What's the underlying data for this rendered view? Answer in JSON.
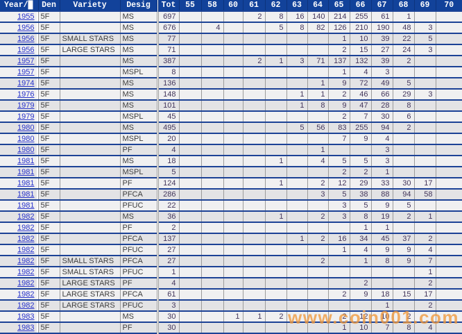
{
  "table": {
    "columns": [
      "Year/█",
      "Den",
      "Variety",
      "Desig",
      "Tot",
      "55",
      "58",
      "60",
      "61",
      "62",
      "63",
      "64",
      "65",
      "66",
      "67",
      "68",
      "69",
      "70"
    ],
    "rows": [
      [
        "1955",
        "5F",
        "",
        "MS",
        "697",
        "",
        "",
        "",
        "2",
        "8",
        "16",
        "140",
        "214",
        "255",
        "61",
        "1",
        "",
        ""
      ],
      [
        "1956",
        "5F",
        "",
        "MS",
        "676",
        "",
        "4",
        "",
        "",
        "5",
        "8",
        "82",
        "126",
        "210",
        "190",
        "48",
        "3",
        ""
      ],
      [
        "1956",
        "5F",
        "SMALL STARS",
        "MS",
        "77",
        "",
        "",
        "",
        "",
        "",
        "",
        "",
        "1",
        "10",
        "39",
        "22",
        "5",
        ""
      ],
      [
        "1956",
        "5F",
        "LARGE STARS",
        "MS",
        "71",
        "",
        "",
        "",
        "",
        "",
        "",
        "",
        "2",
        "15",
        "27",
        "24",
        "3",
        ""
      ],
      [
        "1957",
        "5F",
        "",
        "MS",
        "387",
        "",
        "",
        "",
        "2",
        "1",
        "3",
        "71",
        "137",
        "132",
        "39",
        "2",
        "",
        ""
      ],
      [
        "1957",
        "5F",
        "",
        "MSPL",
        "8",
        "",
        "",
        "",
        "",
        "",
        "",
        "",
        "1",
        "4",
        "3",
        "",
        "",
        ""
      ],
      [
        "1974",
        "5F",
        "",
        "MS",
        "136",
        "",
        "",
        "",
        "",
        "",
        "",
        "1",
        "9",
        "72",
        "49",
        "5",
        "",
        ""
      ],
      [
        "1976",
        "5F",
        "",
        "MS",
        "148",
        "",
        "",
        "",
        "",
        "",
        "1",
        "1",
        "2",
        "46",
        "66",
        "29",
        "3",
        ""
      ],
      [
        "1979",
        "5F",
        "",
        "MS",
        "101",
        "",
        "",
        "",
        "",
        "",
        "1",
        "8",
        "9",
        "47",
        "28",
        "8",
        "",
        ""
      ],
      [
        "1979",
        "5F",
        "",
        "MSPL",
        "45",
        "",
        "",
        "",
        "",
        "",
        "",
        "",
        "2",
        "7",
        "30",
        "6",
        "",
        ""
      ],
      [
        "1980",
        "5F",
        "",
        "MS",
        "495",
        "",
        "",
        "",
        "",
        "",
        "5",
        "56",
        "83",
        "255",
        "94",
        "2",
        "",
        ""
      ],
      [
        "1980",
        "5F",
        "",
        "MSPL",
        "20",
        "",
        "",
        "",
        "",
        "",
        "",
        "",
        "7",
        "9",
        "4",
        "",
        "",
        ""
      ],
      [
        "1980",
        "5F",
        "",
        "PF",
        "4",
        "",
        "",
        "",
        "",
        "",
        "",
        "1",
        "",
        "",
        "3",
        "",
        "",
        ""
      ],
      [
        "1981",
        "5F",
        "",
        "MS",
        "18",
        "",
        "",
        "",
        "",
        "1",
        "",
        "4",
        "5",
        "5",
        "3",
        "",
        "",
        ""
      ],
      [
        "1981",
        "5F",
        "",
        "MSPL",
        "5",
        "",
        "",
        "",
        "",
        "",
        "",
        "",
        "2",
        "2",
        "1",
        "",
        "",
        ""
      ],
      [
        "1981",
        "5F",
        "",
        "PF",
        "124",
        "",
        "",
        "",
        "",
        "1",
        "",
        "2",
        "12",
        "29",
        "33",
        "30",
        "17",
        ""
      ],
      [
        "1981",
        "5F",
        "",
        "PFCA",
        "286",
        "",
        "",
        "",
        "",
        "",
        "",
        "3",
        "5",
        "38",
        "88",
        "94",
        "58",
        ""
      ],
      [
        "1981",
        "5F",
        "",
        "PFUC",
        "22",
        "",
        "",
        "",
        "",
        "",
        "",
        "",
        "3",
        "5",
        "9",
        "5",
        "",
        ""
      ],
      [
        "1982",
        "5F",
        "",
        "MS",
        "36",
        "",
        "",
        "",
        "",
        "1",
        "",
        "2",
        "3",
        "8",
        "19",
        "2",
        "1",
        ""
      ],
      [
        "1982",
        "5F",
        "",
        "PF",
        "2",
        "",
        "",
        "",
        "",
        "",
        "",
        "",
        "",
        "1",
        "1",
        "",
        "",
        ""
      ],
      [
        "1982",
        "5F",
        "",
        "PFCA",
        "137",
        "",
        "",
        "",
        "",
        "",
        "1",
        "2",
        "16",
        "34",
        "45",
        "37",
        "2",
        ""
      ],
      [
        "1982",
        "5F",
        "",
        "PFUC",
        "27",
        "",
        "",
        "",
        "",
        "",
        "",
        "",
        "1",
        "4",
        "9",
        "9",
        "4",
        ""
      ],
      [
        "1982",
        "5F",
        "SMALL STARS",
        "PFCA",
        "27",
        "",
        "",
        "",
        "",
        "",
        "",
        "2",
        "",
        "1",
        "8",
        "9",
        "7",
        ""
      ],
      [
        "1982",
        "5F",
        "SMALL STARS",
        "PFUC",
        "1",
        "",
        "",
        "",
        "",
        "",
        "",
        "",
        "",
        "",
        "",
        "",
        "1",
        ""
      ],
      [
        "1982",
        "5F",
        "LARGE STARS",
        "PF",
        "4",
        "",
        "",
        "",
        "",
        "",
        "",
        "",
        "",
        "2",
        "",
        "",
        "2",
        ""
      ],
      [
        "1982",
        "5F",
        "LARGE STARS",
        "PFCA",
        "61",
        "",
        "",
        "",
        "",
        "",
        "",
        "",
        "2",
        "9",
        "18",
        "15",
        "17",
        ""
      ],
      [
        "1982",
        "5F",
        "LARGE STARS",
        "PFUC",
        "3",
        "",
        "",
        "",
        "",
        "",
        "",
        "",
        "",
        "",
        "1",
        "",
        "2",
        ""
      ],
      [
        "1983",
        "5F",
        "",
        "MS",
        "30",
        "",
        "",
        "1",
        "1",
        "2",
        "",
        "",
        "2",
        "12",
        "10",
        "2",
        "",
        ""
      ],
      [
        "1983",
        "5F",
        "",
        "PF",
        "30",
        "",
        "",
        "",
        "",
        "",
        "",
        "",
        "1",
        "10",
        "7",
        "8",
        "4",
        ""
      ]
    ]
  },
  "watermark": "www.coin001.com",
  "colors": {
    "header_bg": "#12429a",
    "row_separator": "#1c4296",
    "gridline": "#9b9b9b",
    "year_link": "#2833cb",
    "watermark_orange": "#f0993c"
  }
}
